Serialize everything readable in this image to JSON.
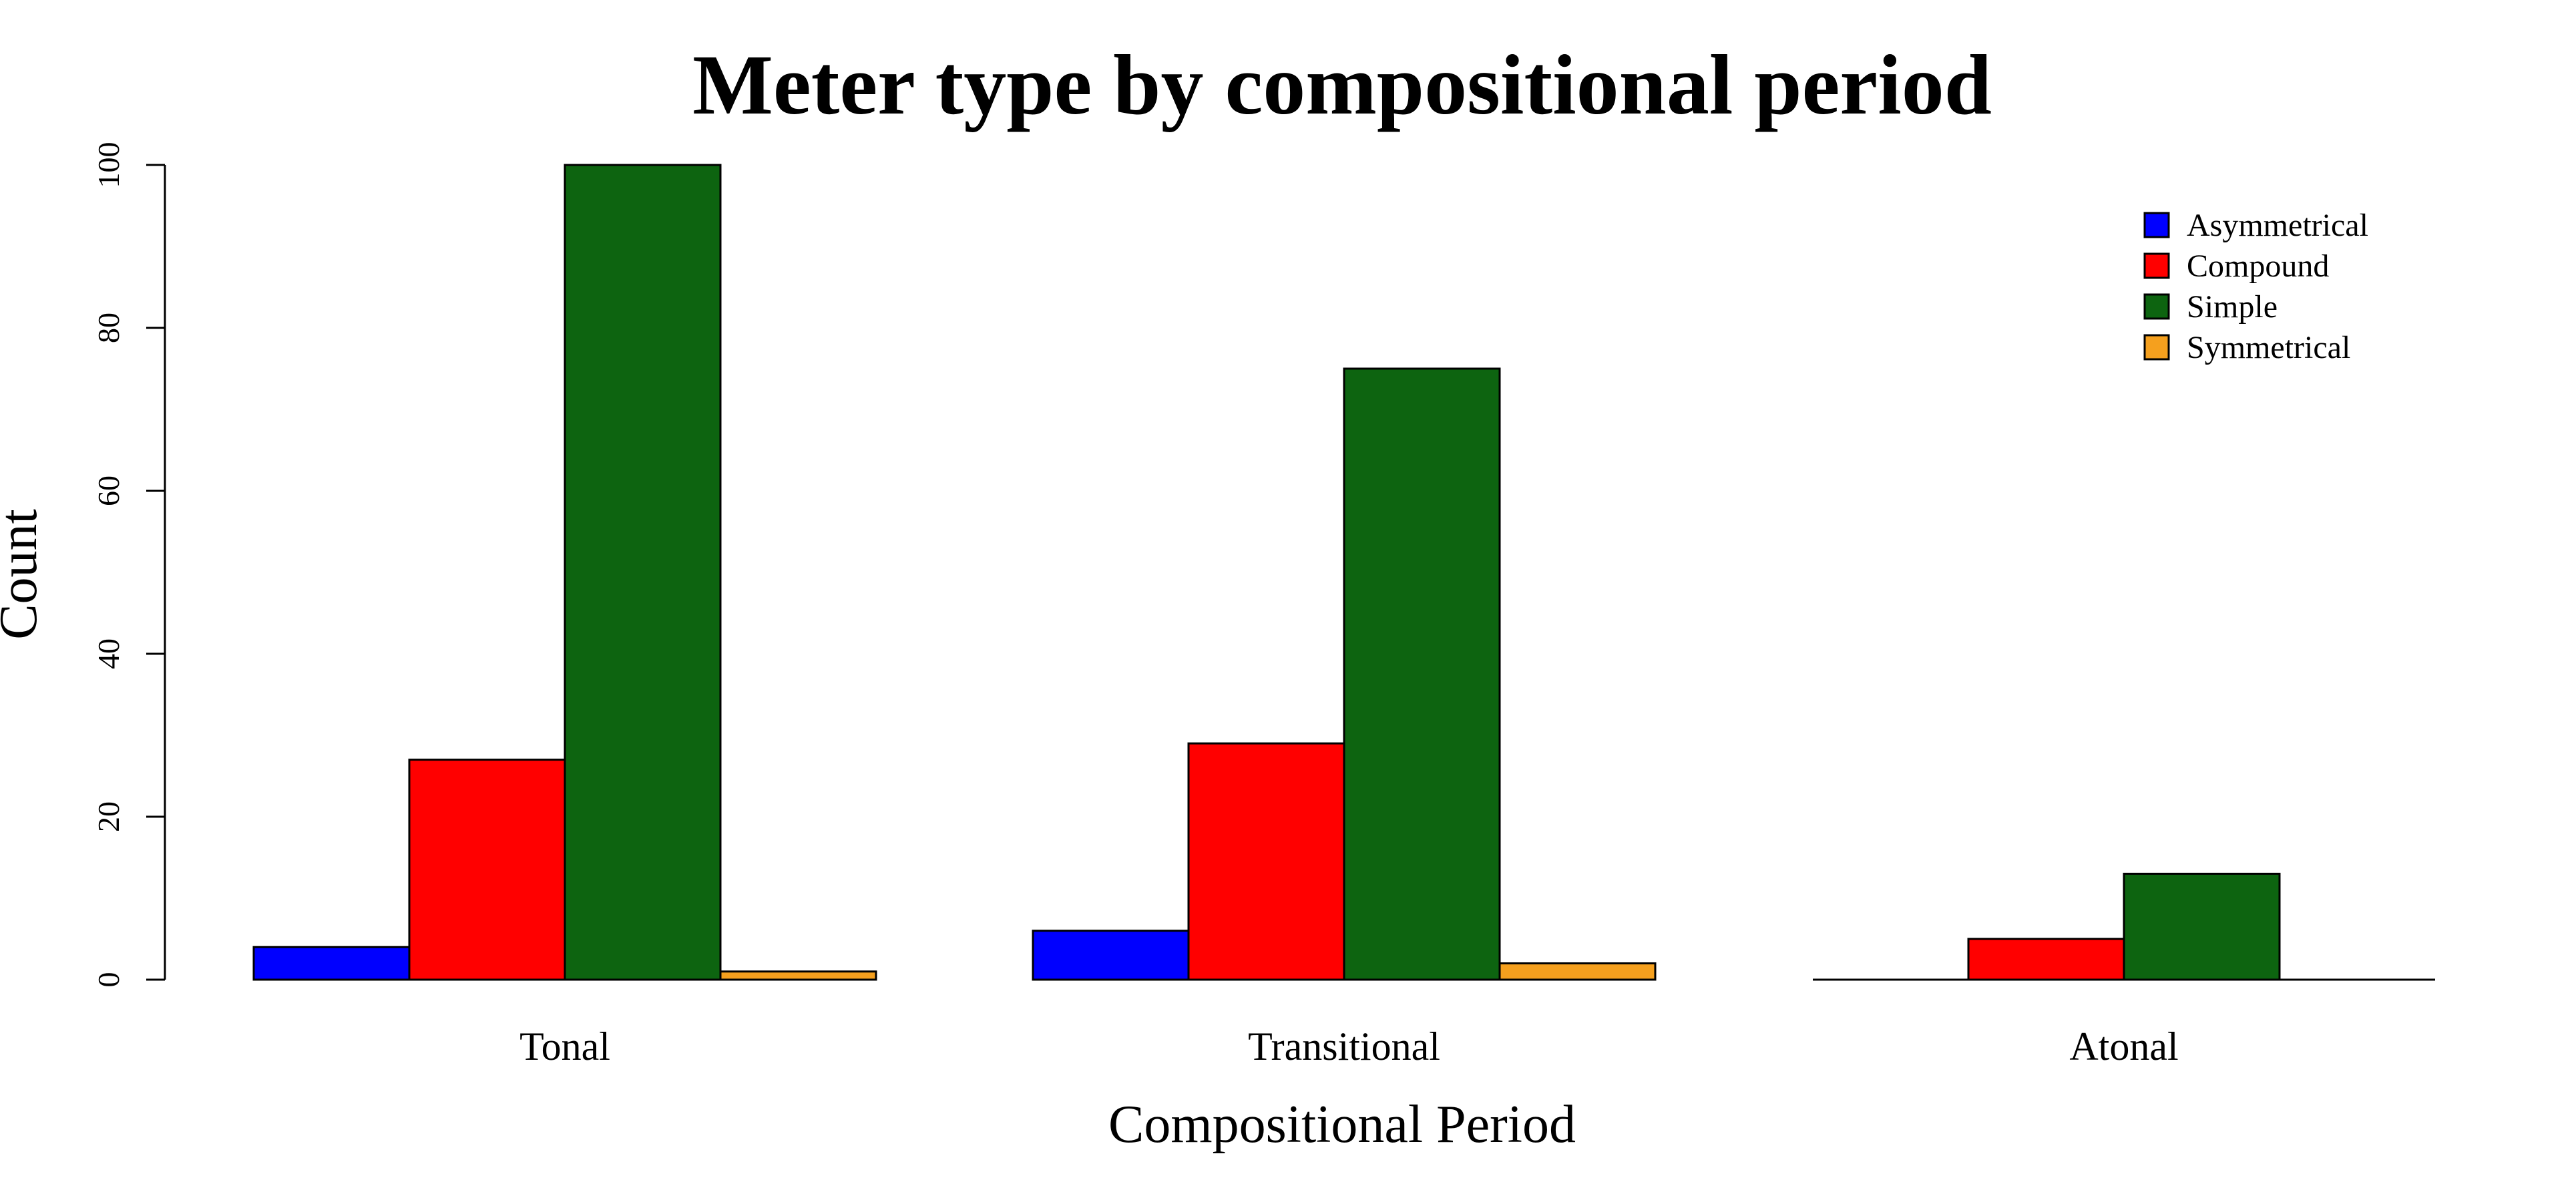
{
  "chart_data": {
    "type": "bar",
    "title": "Meter type by compositional period",
    "xlabel": "Compositional Period",
    "ylabel": "Count",
    "categories": [
      "Tonal",
      "Transitional",
      "Atonal"
    ],
    "series": [
      {
        "name": "Asymmetrical",
        "color": "#0000ff",
        "values": [
          4,
          6,
          0
        ]
      },
      {
        "name": "Compound",
        "color": "#ff0000",
        "values": [
          27,
          29,
          5
        ]
      },
      {
        "name": "Simple",
        "color": "#0d6410",
        "values": [
          100,
          75,
          13
        ]
      },
      {
        "name": "Symmetrical",
        "color": "#f5a01e",
        "values": [
          1,
          2,
          0
        ]
      }
    ],
    "ylim": [
      0,
      100
    ],
    "yticks": [
      "0",
      "20",
      "40",
      "60",
      "80",
      "100"
    ],
    "grid": false,
    "legend_position": "top-right"
  }
}
